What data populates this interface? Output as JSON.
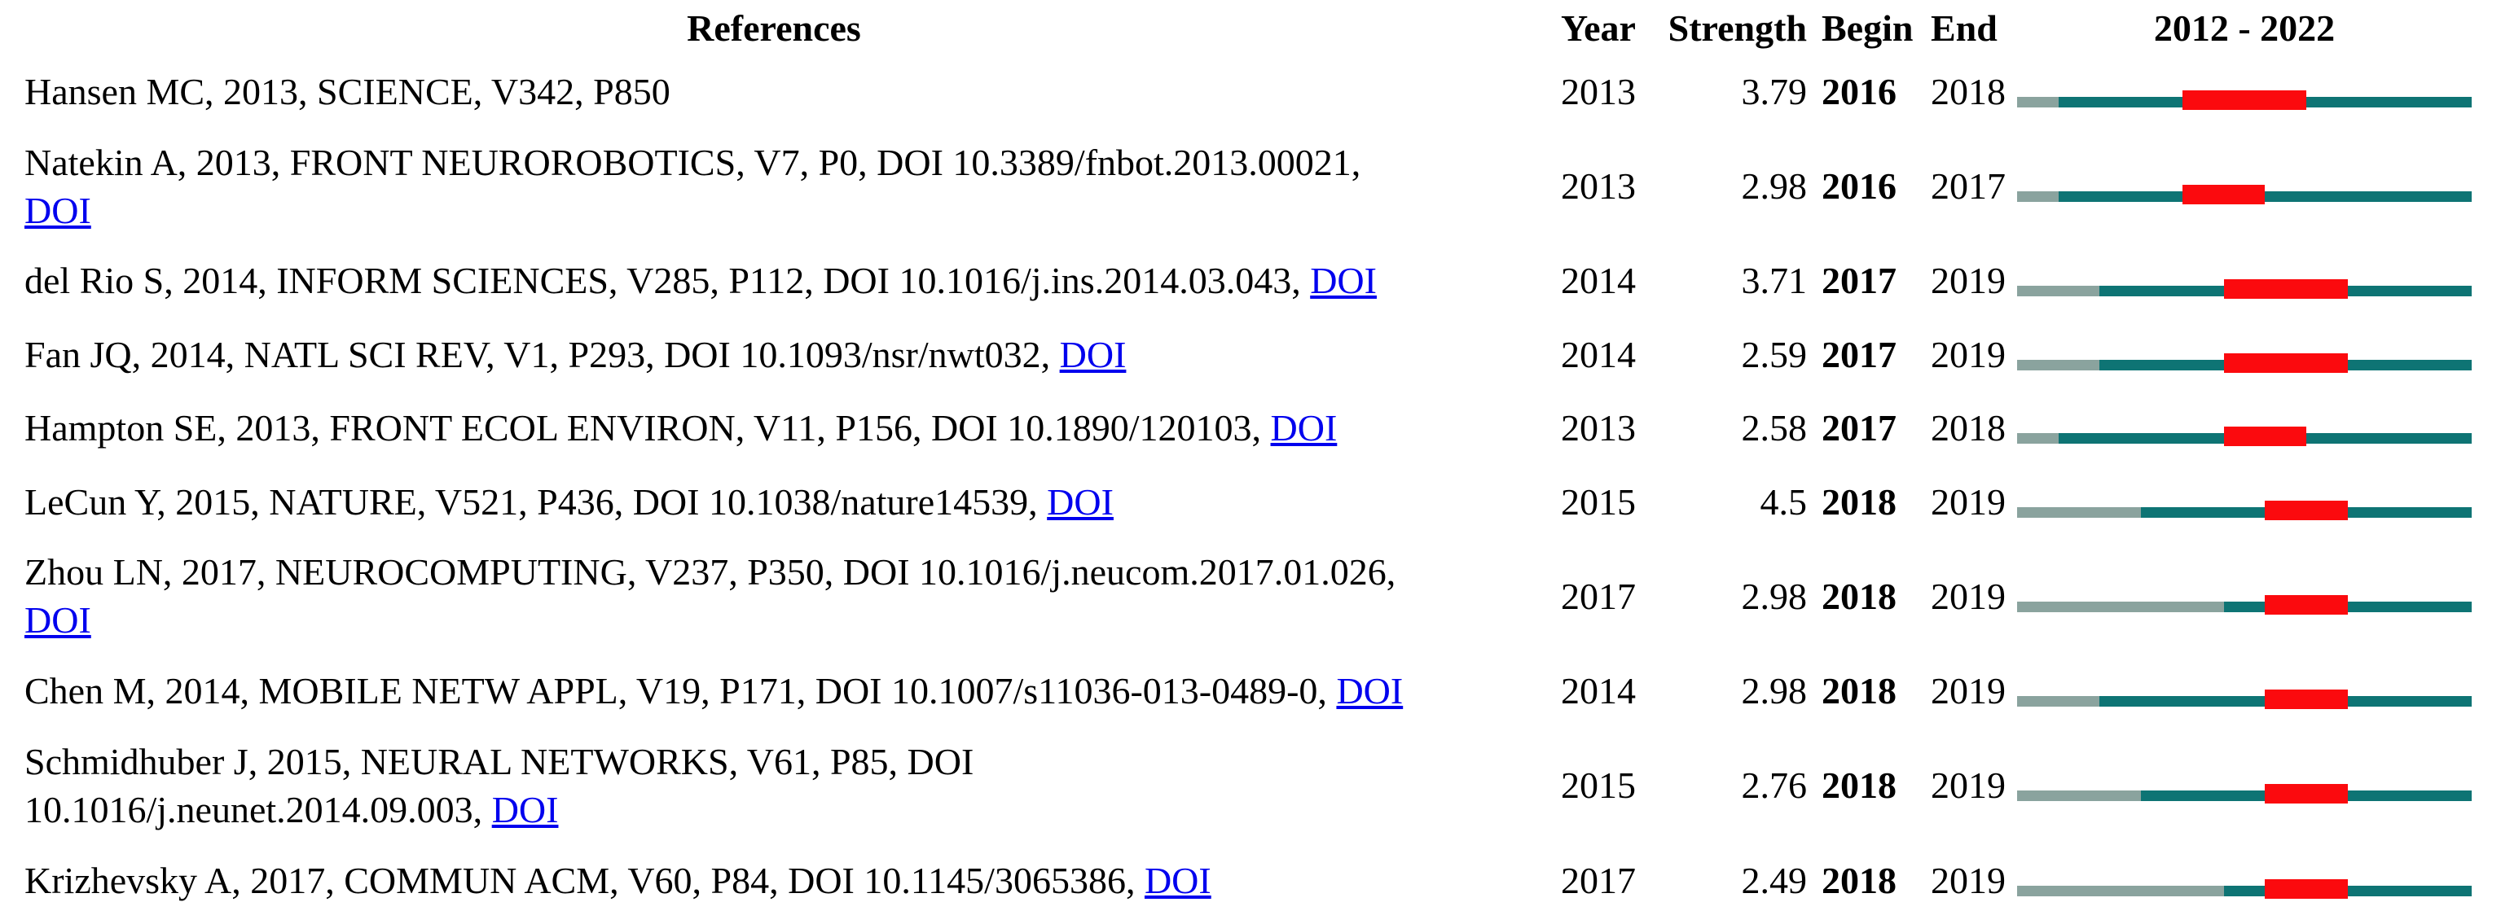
{
  "header": {
    "references": "References",
    "year": "Year",
    "strength": "Strength",
    "begin": "Begin",
    "end": "End",
    "period": "2012 - 2022"
  },
  "colors": {
    "bar_active": "#0E7474",
    "bar_pre": "#8AA39E",
    "bar_burst": "#FB0A0E",
    "link": "#0000EE",
    "text": "#000000"
  },
  "rows": [
    {
      "ref": "Hansen MC, 2013, SCIENCE, V342, P850",
      "doi": "",
      "year": "2013",
      "strength": "3.79",
      "begin": "2016",
      "end": "2018"
    },
    {
      "ref": "Natekin A, 2013, FRONT NEUROROBOTICS, V7, P0, DOI 10.3389/fnbot.2013.00021,\n",
      "doi": "DOI",
      "year": "2013",
      "strength": "2.98",
      "begin": "2016",
      "end": "2017"
    },
    {
      "ref": "del Rio S, 2014, INFORM SCIENCES, V285, P112, DOI 10.1016/j.ins.2014.03.043, ",
      "doi": "DOI",
      "year": "2014",
      "strength": "3.71",
      "begin": "2017",
      "end": "2019"
    },
    {
      "ref": "Fan JQ, 2014, NATL SCI REV, V1, P293, DOI 10.1093/nsr/nwt032, ",
      "doi": "DOI",
      "year": "2014",
      "strength": "2.59",
      "begin": "2017",
      "end": "2019"
    },
    {
      "ref": "Hampton SE, 2013, FRONT ECOL ENVIRON, V11, P156, DOI 10.1890/120103, ",
      "doi": "DOI",
      "year": "2013",
      "strength": "2.58",
      "begin": "2017",
      "end": "2018"
    },
    {
      "ref": "LeCun Y, 2015, NATURE, V521, P436, DOI 10.1038/nature14539, ",
      "doi": "DOI",
      "year": "2015",
      "strength": "4.5",
      "begin": "2018",
      "end": "2019"
    },
    {
      "ref": "Zhou LN, 2017, NEUROCOMPUTING, V237, P350, DOI 10.1016/j.neucom.2017.01.026,\n",
      "doi": "DOI",
      "year": "2017",
      "strength": "2.98",
      "begin": "2018",
      "end": "2019"
    },
    {
      "ref": "Chen M, 2014, MOBILE NETW APPL, V19, P171, DOI 10.1007/s11036-013-0489-0, ",
      "doi": "DOI",
      "year": "2014",
      "strength": "2.98",
      "begin": "2018",
      "end": "2019"
    },
    {
      "ref": "Schmidhuber J, 2015, NEURAL NETWORKS, V61, P85, DOI\n10.1016/j.neunet.2014.09.003, ",
      "doi": "DOI",
      "year": "2015",
      "strength": "2.76",
      "begin": "2018",
      "end": "2019"
    },
    {
      "ref": "Krizhevsky A, 2017, COMMUN ACM, V60, P84, DOI 10.1145/3065386, ",
      "doi": "DOI",
      "year": "2017",
      "strength": "2.49",
      "begin": "2018",
      "end": "2019"
    }
  ],
  "chart_data": {
    "type": "table",
    "columns": [
      "References",
      "Year",
      "Strength",
      "Begin",
      "End",
      "2012 - 2022"
    ],
    "timeline_range": [
      2012,
      2022
    ],
    "bar_segment_colors": {
      "before_publication": "#8AA39E",
      "active_years": "#0E7474",
      "burst_period": "#FB0A0E"
    },
    "rows": [
      {
        "reference": "Hansen MC, 2013, SCIENCE, V342, P850",
        "year": 2013,
        "strength": 3.79,
        "begin": 2016,
        "end": 2018
      },
      {
        "reference": "Natekin A, 2013, FRONT NEUROROBOTICS, V7, P0, DOI 10.3389/fnbot.2013.00021, DOI",
        "year": 2013,
        "strength": 2.98,
        "begin": 2016,
        "end": 2017
      },
      {
        "reference": "del Rio S, 2014, INFORM SCIENCES, V285, P112, DOI 10.1016/j.ins.2014.03.043, DOI",
        "year": 2014,
        "strength": 3.71,
        "begin": 2017,
        "end": 2019
      },
      {
        "reference": "Fan JQ, 2014, NATL SCI REV, V1, P293, DOI 10.1093/nsr/nwt032, DOI",
        "year": 2014,
        "strength": 2.59,
        "begin": 2017,
        "end": 2019
      },
      {
        "reference": "Hampton SE, 2013, FRONT ECOL ENVIRON, V11, P156, DOI 10.1890/120103, DOI",
        "year": 2013,
        "strength": 2.58,
        "begin": 2017,
        "end": 2018
      },
      {
        "reference": "LeCun Y, 2015, NATURE, V521, P436, DOI 10.1038/nature14539, DOI",
        "year": 2015,
        "strength": 4.5,
        "begin": 2018,
        "end": 2019
      },
      {
        "reference": "Zhou LN, 2017, NEUROCOMPUTING, V237, P350, DOI 10.1016/j.neucom.2017.01.026, DOI",
        "year": 2017,
        "strength": 2.98,
        "begin": 2018,
        "end": 2019
      },
      {
        "reference": "Chen M, 2014, MOBILE NETW APPL, V19, P171, DOI 10.1007/s11036-013-0489-0, DOI",
        "year": 2014,
        "strength": 2.98,
        "begin": 2018,
        "end": 2019
      },
      {
        "reference": "Schmidhuber J, 2015, NEURAL NETWORKS, V61, P85, DOI 10.1016/j.neunet.2014.09.003, DOI",
        "year": 2015,
        "strength": 2.76,
        "begin": 2018,
        "end": 2019
      },
      {
        "reference": "Krizhevsky A, 2017, COMMUN ACM, V60, P84, DOI 10.1145/3065386, DOI",
        "year": 2017,
        "strength": 2.49,
        "begin": 2018,
        "end": 2019
      }
    ]
  }
}
